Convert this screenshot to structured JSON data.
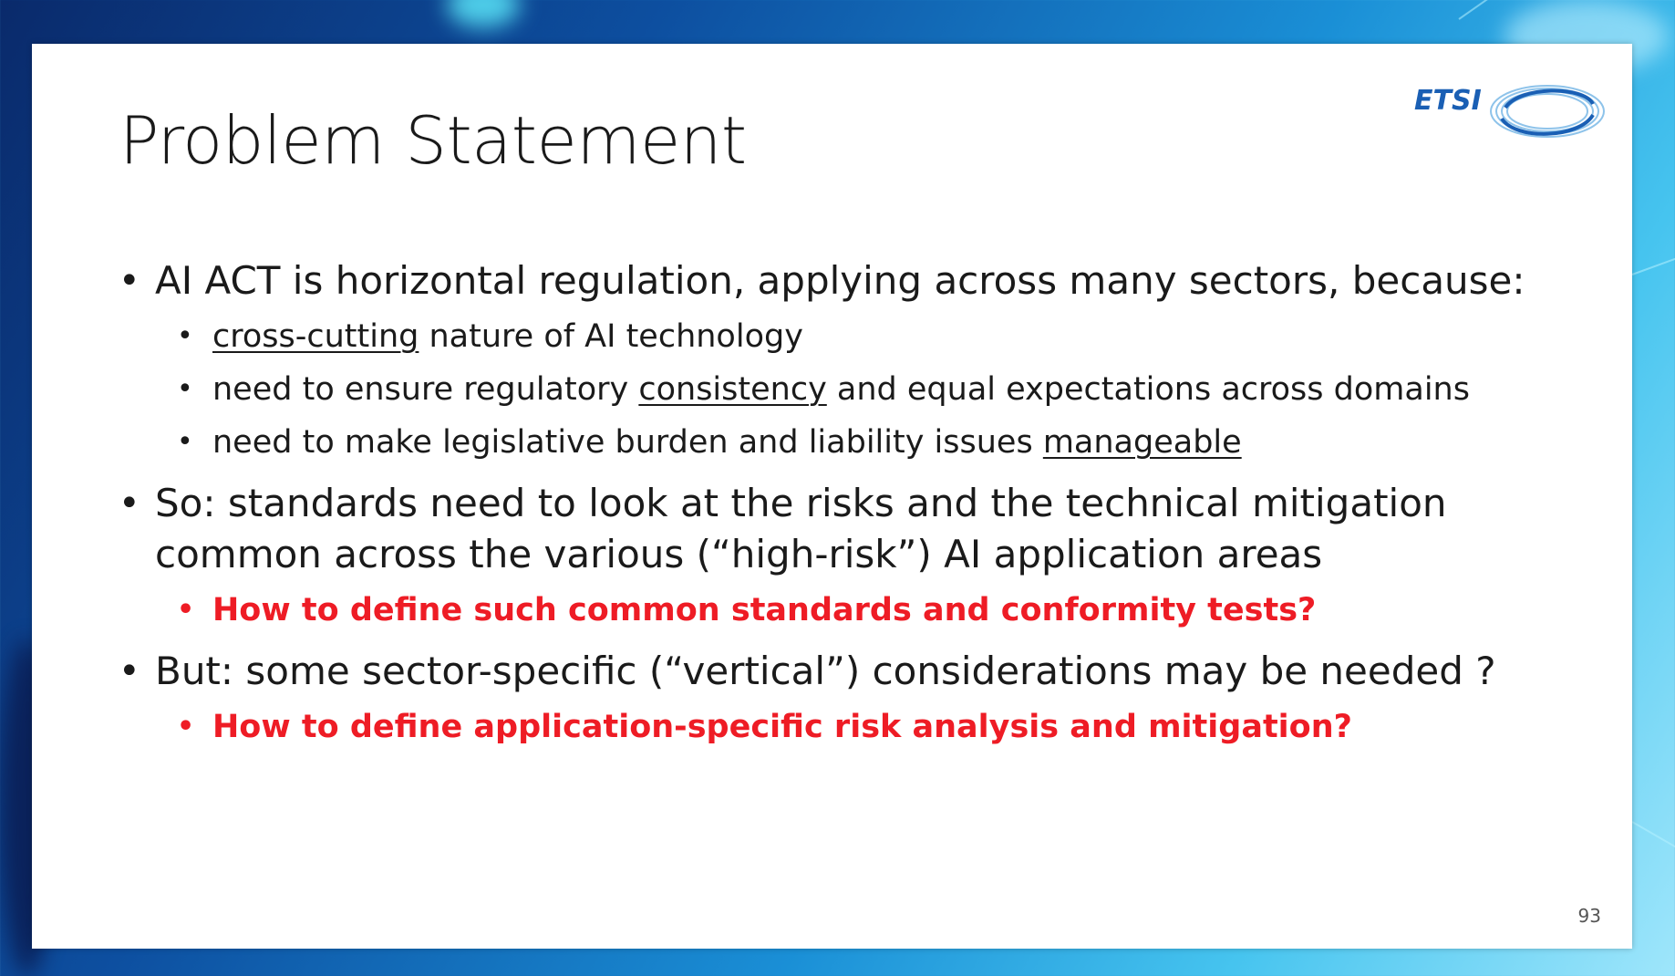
{
  "slide": {
    "title": "Problem Statement",
    "logo_text": "ETSI",
    "page_number": "93",
    "bullets": [
      {
        "text": "AI ACT is horizontal regulation, applying across many sectors, because:",
        "sub": [
          {
            "pre": "",
            "u": "cross-cutting",
            "post": " nature of AI technology"
          },
          {
            "pre": "need to ensure regulatory ",
            "u": "consistency",
            "post": " and equal expectations across domains"
          },
          {
            "pre": "need to make legislative burden and liability issues ",
            "u": "manageable",
            "post": ""
          }
        ]
      },
      {
        "text": "So: standards need to look at the risks and the technical mitigation common across the various (“high-risk”) AI application areas",
        "sub_red": "How to define such common standards and conformity tests?"
      },
      {
        "text": "But: some sector-specific (“vertical”) considerations may be needed ?",
        "sub_red": "How to define application-specific risk analysis and mitigation?"
      }
    ]
  },
  "colors": {
    "accent_red": "#ee1c25",
    "logo_blue": "#1a5fb4"
  }
}
